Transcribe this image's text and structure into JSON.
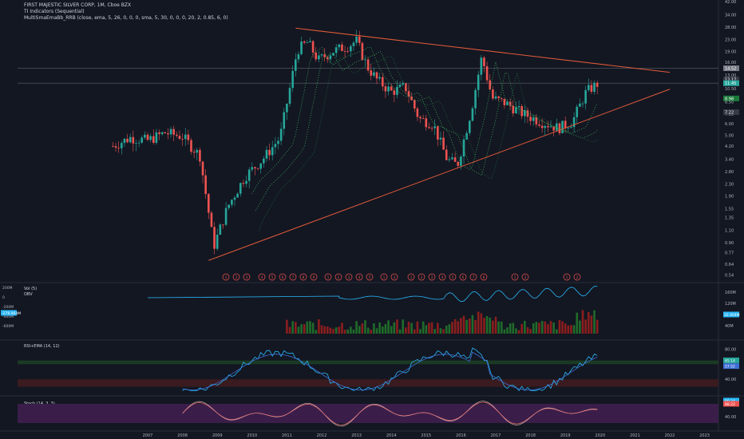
{
  "header": {
    "title": "FIRST MAJESTIC SILVER CORP, 1M, Cboe BZX",
    "indicator_1": "TI Indicators (Sequential)",
    "indicator_2": "MultiSmaEmaBb_RRB (close, ema, 5, 26, 0, 0, 0, sma, 5, 30, 0, 0, 0, 20, 2, 0.85, 6, 0)"
  },
  "panes": {
    "vol_label": "Vol (5)",
    "obv_label": "OBV",
    "rsi_label": "RSI+EMA (14, 12)",
    "stoch_label": "Stoch (14, 3, 3)"
  },
  "colors": {
    "background": "#131722",
    "up": "#26a69a",
    "down": "#ef5350",
    "trendline": "#e05a3a",
    "obv": "#29b6f6",
    "rsi_ema": "#3f6fd6",
    "stoch_k": "#d1a9a9",
    "stoch_band": "#3b1d4a"
  },
  "chart_data": [
    {
      "type": "candlestick",
      "scale": "log",
      "ylim": [
        0.49,
        42.0
      ],
      "y_ticks": [
        "42.00",
        "34.00",
        "28.00",
        "23.00",
        "19.00",
        "16.00",
        "13.00",
        "10.50",
        "8.50",
        "7.00",
        "6.00",
        "5.00",
        "4.20",
        "3.40",
        "2.80",
        "2.30",
        "1.90",
        "1.55",
        "1.35",
        "1.10",
        "0.90",
        "0.77",
        "0.64",
        "0.54"
      ],
      "x_ticks": [
        "2007",
        "2008",
        "2009",
        "2010",
        "2011",
        "2012",
        "2013",
        "2014",
        "2015",
        "2016",
        "2017",
        "2018",
        "2019",
        "2020",
        "2021",
        "2022",
        "2023"
      ],
      "price_badges": [
        {
          "text": "14.52",
          "value": 14.52,
          "color": "#787b86"
        },
        {
          "text": "12.17",
          "value": 12.17,
          "color": "#363a45"
        },
        {
          "text": "11.4",
          "value": 11.4,
          "color": "#363a45"
        },
        {
          "text": "11.45",
          "value": 11.45,
          "color": "#26a69a"
        },
        {
          "text": "8.98",
          "value": 8.98,
          "color": "#1b7a3a"
        },
        {
          "text": "7.22",
          "value": 7.22,
          "color": "#363a45"
        }
      ],
      "annotations": {
        "horizontal_lines": [
          14.52,
          11.45
        ],
        "trendlines": [
          {
            "from": [
              "2011.25",
              27.5
            ],
            "to": [
              "2022.0",
              13.6
            ]
          },
          {
            "from": [
              "2008.75",
              0.68
            ],
            "to": [
              "2022.0",
              10.4
            ]
          }
        ]
      },
      "series_close": [
        [
          "2006.0",
          4.2
        ],
        [
          "2006.5",
          4.8
        ],
        [
          "2007.0",
          4.6
        ],
        [
          "2007.5",
          5.2
        ],
        [
          "2008.0",
          4.9
        ],
        [
          "2008.5",
          3.6
        ],
        [
          "2008.9",
          0.85
        ],
        [
          "2009.3",
          1.6
        ],
        [
          "2009.8",
          2.6
        ],
        [
          "2010.3",
          3.4
        ],
        [
          "2010.8",
          4.8
        ],
        [
          "2011.1",
          11.0
        ],
        [
          "2011.3",
          19.5
        ],
        [
          "2011.6",
          22.0
        ],
        [
          "2011.9",
          16.5
        ],
        [
          "2012.3",
          19.0
        ],
        [
          "2012.8",
          21.0
        ],
        [
          "2013.0",
          22.5
        ],
        [
          "2013.3",
          15.0
        ],
        [
          "2013.6",
          12.0
        ],
        [
          "2014.0",
          10.0
        ],
        [
          "2014.4",
          10.8
        ],
        [
          "2014.8",
          6.5
        ],
        [
          "2015.2",
          6.0
        ],
        [
          "2015.6",
          3.4
        ],
        [
          "2015.9",
          3.1
        ],
        [
          "2016.3",
          7.5
        ],
        [
          "2016.6",
          17.5
        ],
        [
          "2016.9",
          9.0
        ],
        [
          "2017.3",
          8.3
        ],
        [
          "2017.8",
          7.0
        ],
        [
          "2018.3",
          6.2
        ],
        [
          "2018.8",
          5.6
        ],
        [
          "2019.2",
          6.2
        ],
        [
          "2019.6",
          10.0
        ],
        [
          "2019.95",
          11.45
        ]
      ]
    },
    {
      "type": "bar",
      "name": "Vol (5)",
      "y_ticks": [
        "160M",
        "120M",
        "80M",
        "40M"
      ],
      "left_ticks": [
        "200M",
        "0",
        "-200M",
        "-400M",
        "-600M"
      ],
      "badges": [
        {
          "text": "-278.964M",
          "color": "#29b6f6"
        },
        {
          "text": "32.404M",
          "color": "#29b6f6"
        }
      ]
    },
    {
      "type": "line",
      "name": "RSI+EMA (14, 12)",
      "y_ticks": [
        "80.00",
        "60.00",
        "40.00"
      ],
      "ylim": [
        20,
        90
      ],
      "bands": [
        [
          60,
          65
        ],
        [
          30,
          40
        ]
      ],
      "badges": [
        {
          "text": "65.14",
          "color": "#26a69a"
        },
        {
          "text": "57.52",
          "color": "#3f6fd6"
        }
      ]
    },
    {
      "type": "line",
      "name": "Stoch (14, 3, 3)",
      "y_ticks": [
        "80.00",
        "40.00"
      ],
      "ylim": [
        0,
        100
      ],
      "band": [
        20,
        80
      ],
      "badges": [
        {
          "text": "90.34",
          "color": "#29b6f6"
        },
        {
          "text": "88.22",
          "color": "#ef5350"
        }
      ]
    }
  ],
  "sequential_markers": [
    "1",
    "2",
    "3",
    "4",
    "5",
    "6",
    "7",
    "8",
    "9",
    "1",
    "2",
    "3",
    "4",
    "5",
    "1",
    "2",
    "1",
    "2",
    "3",
    "4",
    "5",
    "6",
    "7",
    "8",
    "1",
    "2",
    "1",
    "2"
  ]
}
